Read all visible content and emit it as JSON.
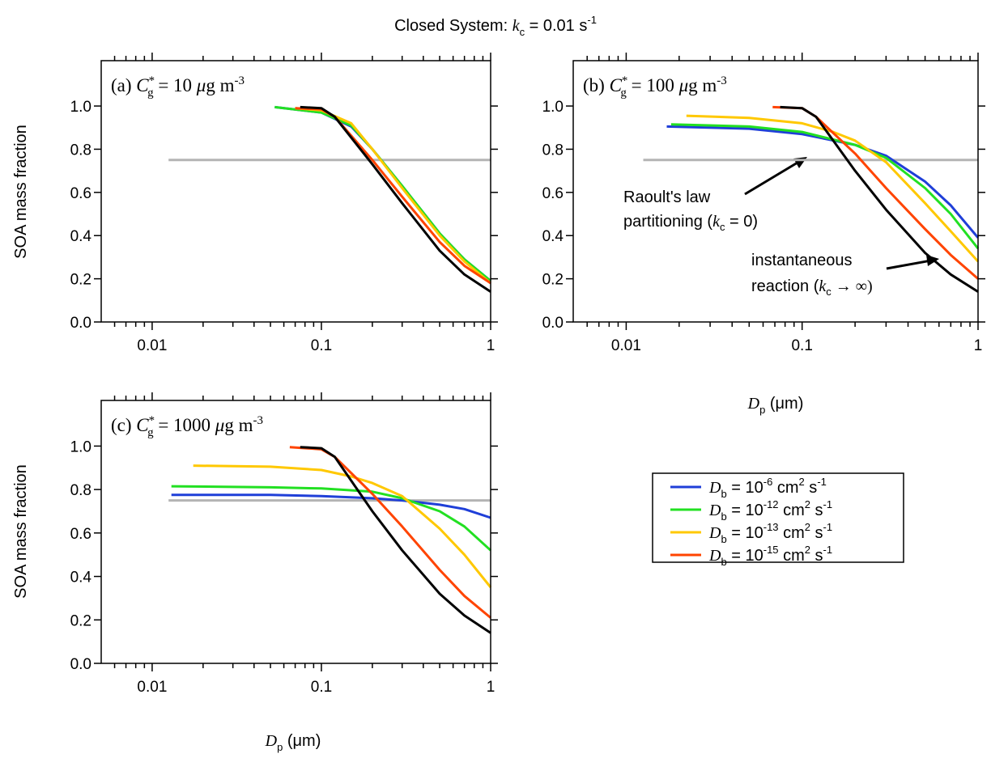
{
  "title": [
    "Closed System: ",
    "k",
    "c",
    " = 0.01 s",
    "-1"
  ],
  "chart_data": [
    {
      "type": "line",
      "log_x": true,
      "label": [
        "(a) ",
        "C",
        "*",
        "g",
        " = 10 ",
        "μ",
        "g m",
        "-3"
      ],
      "ylabel": "SOA mass fraction",
      "xlim": [
        0.005,
        1
      ],
      "ylim": [
        0,
        1.21
      ],
      "xticks": [
        0.01,
        0.1,
        1
      ],
      "xminorticks": [
        0.006,
        0.007,
        0.008,
        0.009,
        0.02,
        0.03,
        0.04,
        0.05,
        0.06,
        0.07,
        0.08,
        0.09,
        0.2,
        0.3,
        0.4,
        0.5,
        0.6,
        0.7,
        0.8,
        0.9
      ],
      "yticks": [
        {
          "value": 0,
          "label": "0.0"
        },
        0.2,
        0.4,
        0.6,
        0.8,
        {
          "value": 1,
          "label": "1.0"
        }
      ],
      "series": [
        {
          "color": "#b4b4b4",
          "x": [
            0.0125,
            1
          ],
          "values": [
            0.75,
            0.75
          ]
        },
        {
          "color": "#1f3fd8",
          "x": [
            0.053,
            0.1,
            0.15,
            0.2,
            0.3,
            0.5,
            0.7,
            1
          ],
          "values": [
            0.995,
            0.97,
            0.905,
            0.8,
            0.63,
            0.41,
            0.29,
            0.19
          ]
        },
        {
          "color": "#22e022",
          "x": [
            0.053,
            0.1,
            0.15,
            0.2,
            0.3,
            0.5,
            0.7,
            1
          ],
          "values": [
            0.995,
            0.97,
            0.91,
            0.8,
            0.63,
            0.41,
            0.29,
            0.19
          ]
        },
        {
          "color": "#ffc800",
          "x": [
            0.07,
            0.1,
            0.15,
            0.2,
            0.3,
            0.5,
            0.7,
            1
          ],
          "values": [
            0.99,
            0.98,
            0.92,
            0.8,
            0.62,
            0.4,
            0.28,
            0.18
          ]
        },
        {
          "color": "#ff4400",
          "x": [
            0.07,
            0.1,
            0.12,
            0.2,
            0.3,
            0.5,
            0.7,
            1
          ],
          "values": [
            0.99,
            0.985,
            0.95,
            0.75,
            0.58,
            0.37,
            0.26,
            0.18
          ]
        },
        {
          "color": "#000000",
          "x": [
            0.075,
            0.1,
            0.12,
            0.2,
            0.3,
            0.5,
            0.7,
            1
          ],
          "values": [
            0.995,
            0.99,
            0.95,
            0.73,
            0.55,
            0.33,
            0.22,
            0.14
          ]
        }
      ]
    },
    {
      "type": "line",
      "log_x": true,
      "label": [
        "(b) ",
        "C",
        "*",
        "g",
        " = 100 ",
        "μ",
        "g m",
        "-3"
      ],
      "xlabel": [
        "D",
        "p",
        " (μm)"
      ],
      "xlim": [
        0.005,
        1
      ],
      "ylim": [
        0,
        1.21
      ],
      "xticks": [
        0.01,
        0.1,
        1
      ],
      "xminorticks": [
        0.006,
        0.007,
        0.008,
        0.009,
        0.02,
        0.03,
        0.04,
        0.05,
        0.06,
        0.07,
        0.08,
        0.09,
        0.2,
        0.3,
        0.4,
        0.5,
        0.6,
        0.7,
        0.8,
        0.9
      ],
      "yticks": [
        {
          "value": 0,
          "label": "0.0"
        },
        0.2,
        0.4,
        0.6,
        0.8,
        {
          "value": 1,
          "label": "1.0"
        }
      ],
      "annotations": [
        {
          "text": [
            "Raoult's law",
            "partitioning (",
            "k",
            "c",
            " = 0)"
          ]
        },
        {
          "text": [
            "instantaneous",
            "reaction (",
            "k",
            "c",
            " → ∞)"
          ]
        }
      ],
      "series": [
        {
          "color": "#b4b4b4",
          "x": [
            0.0125,
            1
          ],
          "values": [
            0.75,
            0.75
          ]
        },
        {
          "color": "#1f3fd8",
          "x": [
            0.017,
            0.05,
            0.1,
            0.2,
            0.3,
            0.5,
            0.7,
            1
          ],
          "values": [
            0.905,
            0.895,
            0.87,
            0.82,
            0.77,
            0.65,
            0.54,
            0.39
          ]
        },
        {
          "color": "#22e022",
          "x": [
            0.018,
            0.05,
            0.1,
            0.2,
            0.3,
            0.5,
            0.7,
            1
          ],
          "values": [
            0.915,
            0.905,
            0.88,
            0.82,
            0.76,
            0.62,
            0.5,
            0.34
          ]
        },
        {
          "color": "#ffc800",
          "x": [
            0.022,
            0.05,
            0.1,
            0.15,
            0.2,
            0.3,
            0.5,
            0.7,
            1
          ],
          "values": [
            0.955,
            0.945,
            0.92,
            0.88,
            0.84,
            0.74,
            0.55,
            0.42,
            0.28
          ]
        },
        {
          "color": "#ff4400",
          "x": [
            0.068,
            0.1,
            0.12,
            0.2,
            0.3,
            0.5,
            0.7,
            1
          ],
          "values": [
            0.995,
            0.99,
            0.95,
            0.78,
            0.62,
            0.43,
            0.31,
            0.2
          ]
        },
        {
          "color": "#000000",
          "x": [
            0.075,
            0.1,
            0.12,
            0.2,
            0.3,
            0.5,
            0.7,
            1
          ],
          "values": [
            0.995,
            0.99,
            0.95,
            0.7,
            0.52,
            0.32,
            0.22,
            0.14
          ]
        }
      ]
    },
    {
      "type": "line",
      "log_x": true,
      "label": [
        "(c) ",
        "C",
        "*",
        "g",
        " = 1000 ",
        "μ",
        "g m",
        "-3"
      ],
      "ylabel": "SOA mass fraction",
      "xlabel": [
        "D",
        "p",
        " (μm)"
      ],
      "xlim": [
        0.005,
        1
      ],
      "ylim": [
        0,
        1.21
      ],
      "xticks": [
        0.01,
        0.1,
        1
      ],
      "xminorticks": [
        0.006,
        0.007,
        0.008,
        0.009,
        0.02,
        0.03,
        0.04,
        0.05,
        0.06,
        0.07,
        0.08,
        0.09,
        0.2,
        0.3,
        0.4,
        0.5,
        0.6,
        0.7,
        0.8,
        0.9
      ],
      "yticks": [
        {
          "value": 0,
          "label": "0.0"
        },
        0.2,
        0.4,
        0.6,
        0.8,
        {
          "value": 1,
          "label": "1.0"
        }
      ],
      "series": [
        {
          "color": "#b4b4b4",
          "x": [
            0.0125,
            1
          ],
          "values": [
            0.75,
            0.75
          ]
        },
        {
          "name": [
            "D",
            "b",
            " = 10",
            "-6",
            " cm",
            "2",
            " s",
            "-1"
          ],
          "color": "#1f3fd8",
          "x": [
            0.013,
            0.05,
            0.1,
            0.2,
            0.3,
            0.5,
            0.7,
            1
          ],
          "values": [
            0.775,
            0.775,
            0.77,
            0.76,
            0.75,
            0.73,
            0.71,
            0.67
          ]
        },
        {
          "name": [
            "D",
            "b",
            " = 10",
            "-12",
            " cm",
            "2",
            " s",
            "-1"
          ],
          "color": "#22e022",
          "x": [
            0.013,
            0.05,
            0.1,
            0.2,
            0.3,
            0.5,
            0.7,
            1
          ],
          "values": [
            0.815,
            0.81,
            0.805,
            0.79,
            0.76,
            0.7,
            0.63,
            0.52
          ]
        },
        {
          "name": [
            "D",
            "b",
            " = 10",
            "-13",
            " cm",
            "2",
            " s",
            "-1"
          ],
          "color": "#ffc800",
          "x": [
            0.0175,
            0.05,
            0.1,
            0.15,
            0.2,
            0.3,
            0.5,
            0.7,
            1
          ],
          "values": [
            0.91,
            0.905,
            0.89,
            0.86,
            0.83,
            0.77,
            0.62,
            0.5,
            0.35
          ]
        },
        {
          "name": [
            "D",
            "b",
            " = 10",
            "-15",
            " cm",
            "2",
            " s",
            "-1"
          ],
          "color": "#ff4400",
          "x": [
            0.065,
            0.1,
            0.12,
            0.2,
            0.3,
            0.5,
            0.7,
            1
          ],
          "values": [
            0.995,
            0.985,
            0.95,
            0.78,
            0.63,
            0.43,
            0.31,
            0.21
          ]
        },
        {
          "color": "#000000",
          "x": [
            0.075,
            0.1,
            0.12,
            0.2,
            0.3,
            0.5,
            0.7,
            1
          ],
          "values": [
            0.995,
            0.99,
            0.95,
            0.7,
            0.52,
            0.32,
            0.22,
            0.14
          ]
        }
      ]
    }
  ]
}
